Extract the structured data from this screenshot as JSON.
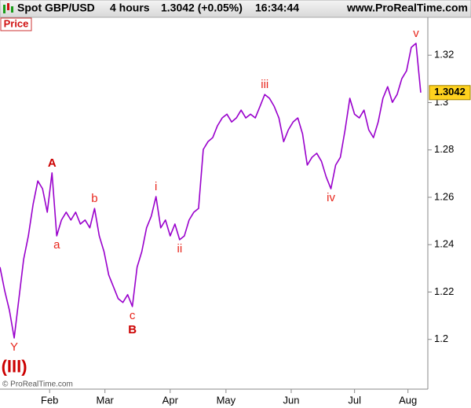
{
  "header": {
    "symbol": "Spot GBP/USD",
    "interval": "4 hours",
    "quote": "1.3042 (+0.05%)",
    "time": "16:34:44",
    "site": "www.ProRealTime.com"
  },
  "panel_label": "Price",
  "copyright": "© ProRealTime.com",
  "chart_data": {
    "type": "line",
    "color": "#9900cc",
    "values": [
      1.2305,
      1.2205,
      1.2122,
      1.2006,
      1.2172,
      1.2338,
      1.2437,
      1.257,
      1.2669,
      1.2636,
      1.2537,
      1.2703,
      1.2437,
      1.2504,
      1.2537,
      1.2504,
      1.2537,
      1.2487,
      1.2504,
      1.2471,
      1.2553,
      1.2437,
      1.2371,
      1.2272,
      1.2222,
      1.2172,
      1.2156,
      1.2189,
      1.2139,
      1.2305,
      1.2371,
      1.2471,
      1.252,
      1.2603,
      1.2471,
      1.2504,
      1.2437,
      1.2487,
      1.2421,
      1.2437,
      1.2504,
      1.2537,
      1.2553,
      1.2802,
      1.2835,
      1.2852,
      1.2902,
      1.2935,
      1.2951,
      1.2918,
      1.2935,
      1.2968,
      1.2935,
      1.2951,
      1.2935,
      1.2984,
      1.3034,
      1.3018,
      1.2984,
      1.2935,
      1.2835,
      1.2885,
      1.2918,
      1.2935,
      1.2868,
      1.2736,
      1.2769,
      1.2786,
      1.2752,
      1.2686,
      1.2636,
      1.2736,
      1.2769,
      1.2885,
      1.3018,
      1.2951,
      1.2935,
      1.2968,
      1.2885,
      1.2852,
      1.2918,
      1.3018,
      1.3067,
      1.3001,
      1.3034,
      1.3101,
      1.3134,
      1.3233,
      1.325,
      1.3042
    ],
    "xlim": [
      0,
      90.5
    ],
    "xticks": [
      {
        "value": 10.5,
        "label": "Feb"
      },
      {
        "value": 22.2,
        "label": "Mar"
      },
      {
        "value": 36,
        "label": "Apr"
      },
      {
        "value": 47.8,
        "label": "May"
      },
      {
        "value": 61.6,
        "label": "Jun"
      },
      {
        "value": 75,
        "label": "Jul"
      },
      {
        "value": 86.3,
        "label": "Aug"
      }
    ],
    "ylim": [
      1.179,
      1.336
    ],
    "yticks": [
      1.2,
      1.22,
      1.24,
      1.26,
      1.28,
      1.3,
      1.32
    ],
    "annotations": [
      {
        "text": "Y",
        "index": 3,
        "side": "below"
      },
      {
        "text": "(III)",
        "index": 3,
        "side": "below",
        "bold": true
      },
      {
        "text": "A",
        "index": 11,
        "side": "above",
        "bold": true
      },
      {
        "text": "a",
        "index": 12,
        "side": "below"
      },
      {
        "text": "b",
        "index": 20,
        "side": "above"
      },
      {
        "text": "c",
        "index": 28,
        "side": "below"
      },
      {
        "text": "B",
        "index": 28,
        "side": "below",
        "bold": true
      },
      {
        "text": "i",
        "index": 33,
        "side": "above"
      },
      {
        "text": "ii",
        "index": 38,
        "side": "below"
      },
      {
        "text": "iii",
        "index": 56,
        "side": "above"
      },
      {
        "text": "iv",
        "index": 70,
        "side": "below"
      },
      {
        "text": "v",
        "index": 88,
        "side": "above"
      }
    ]
  }
}
